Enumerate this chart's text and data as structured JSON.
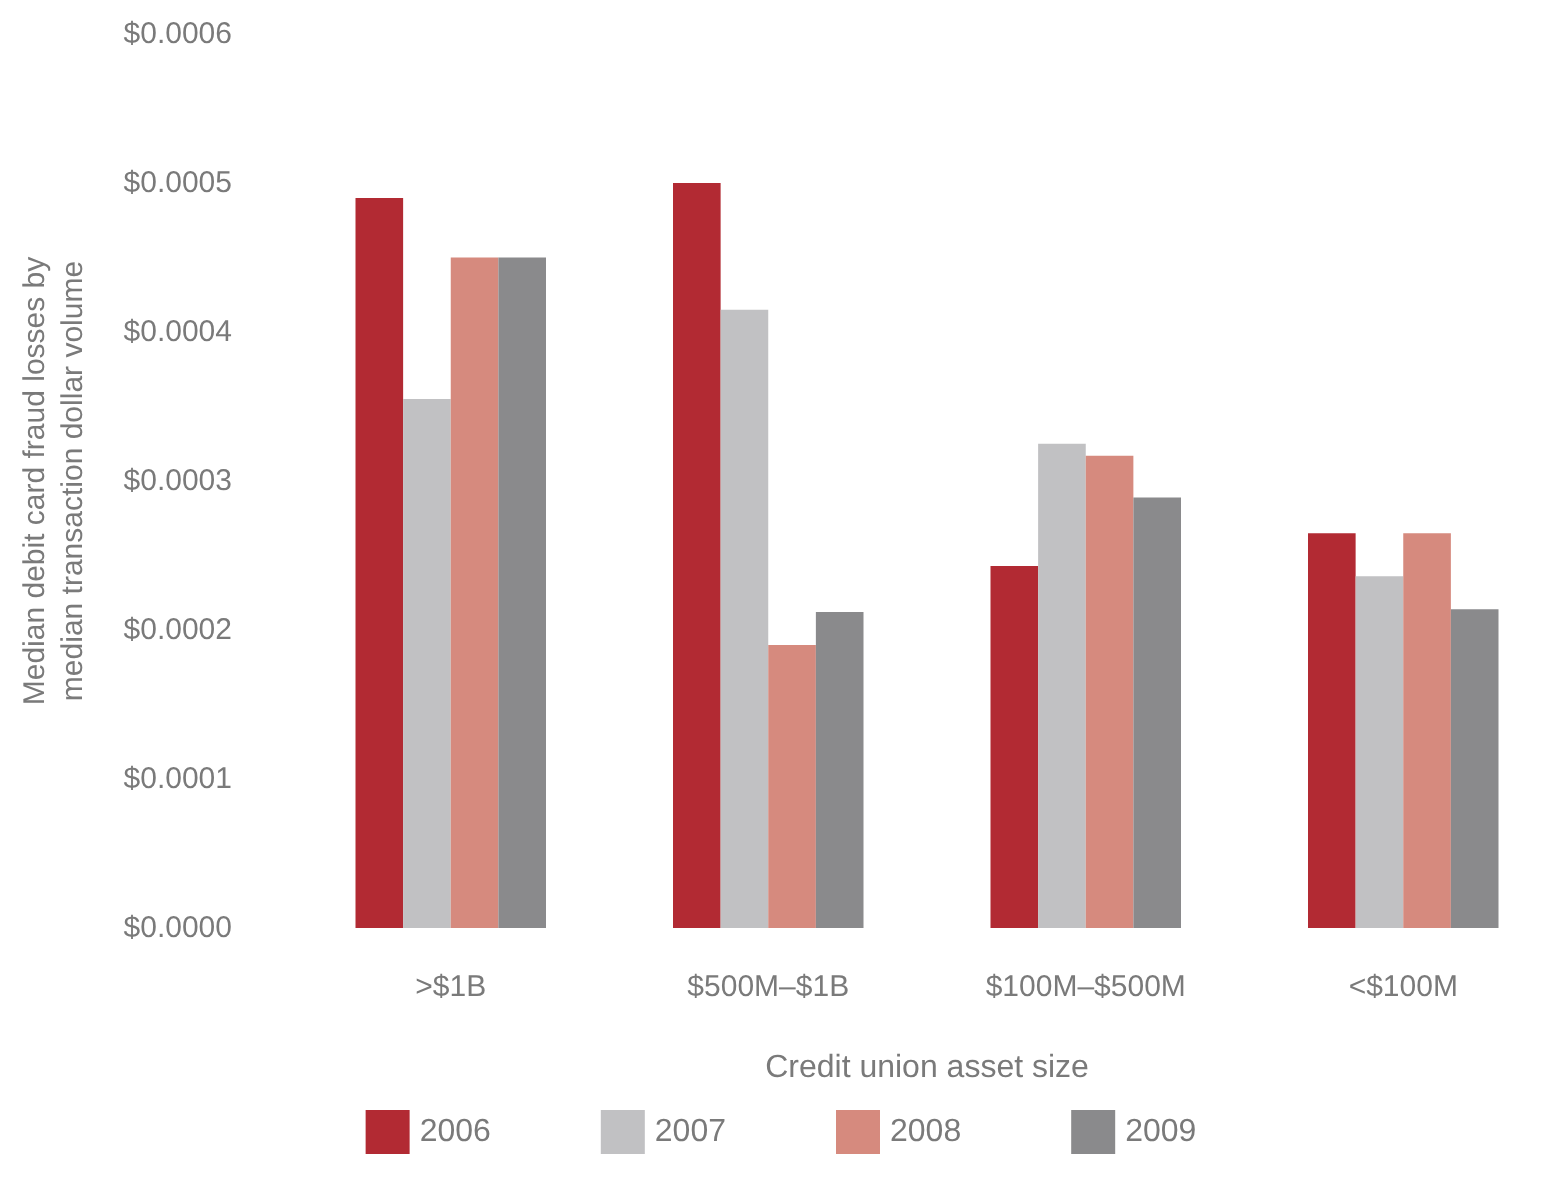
{
  "chart_data": {
    "type": "bar",
    "xlabel": "Credit union asset size",
    "ylabel": "Median debit card fraud losses by\nmedian transaction dollar volume",
    "categories": [
      ">$1B",
      "$500M–$1B",
      "$100M–$500M",
      "<$100M"
    ],
    "series": [
      {
        "name": "2006",
        "color": "#b22a33",
        "values": [
          0.00049,
          0.0005,
          0.000243,
          0.000265
        ]
      },
      {
        "name": "2007",
        "color": "#c1c1c3",
        "values": [
          0.000355,
          0.000415,
          0.000325,
          0.000236
        ]
      },
      {
        "name": "2008",
        "color": "#d68a7e",
        "values": [
          0.00045,
          0.00019,
          0.000317,
          0.000265
        ]
      },
      {
        "name": "2009",
        "color": "#8a8a8c",
        "values": [
          0.00045,
          0.000212,
          0.000289,
          0.000214
        ]
      }
    ],
    "ylim": [
      0,
      0.0006
    ],
    "yticks": [
      {
        "value": 0,
        "label": "$0.0000"
      },
      {
        "value": 0.0001,
        "label": "$0.0001"
      },
      {
        "value": 0.0002,
        "label": "$0.0002"
      },
      {
        "value": 0.0003,
        "label": "$0.0003"
      },
      {
        "value": 0.0004,
        "label": "$0.0004"
      },
      {
        "value": 0.0005,
        "label": "$0.0005"
      },
      {
        "value": 0.0006,
        "label": "$0.0006"
      }
    ],
    "grid": false,
    "legend": "bottom"
  }
}
